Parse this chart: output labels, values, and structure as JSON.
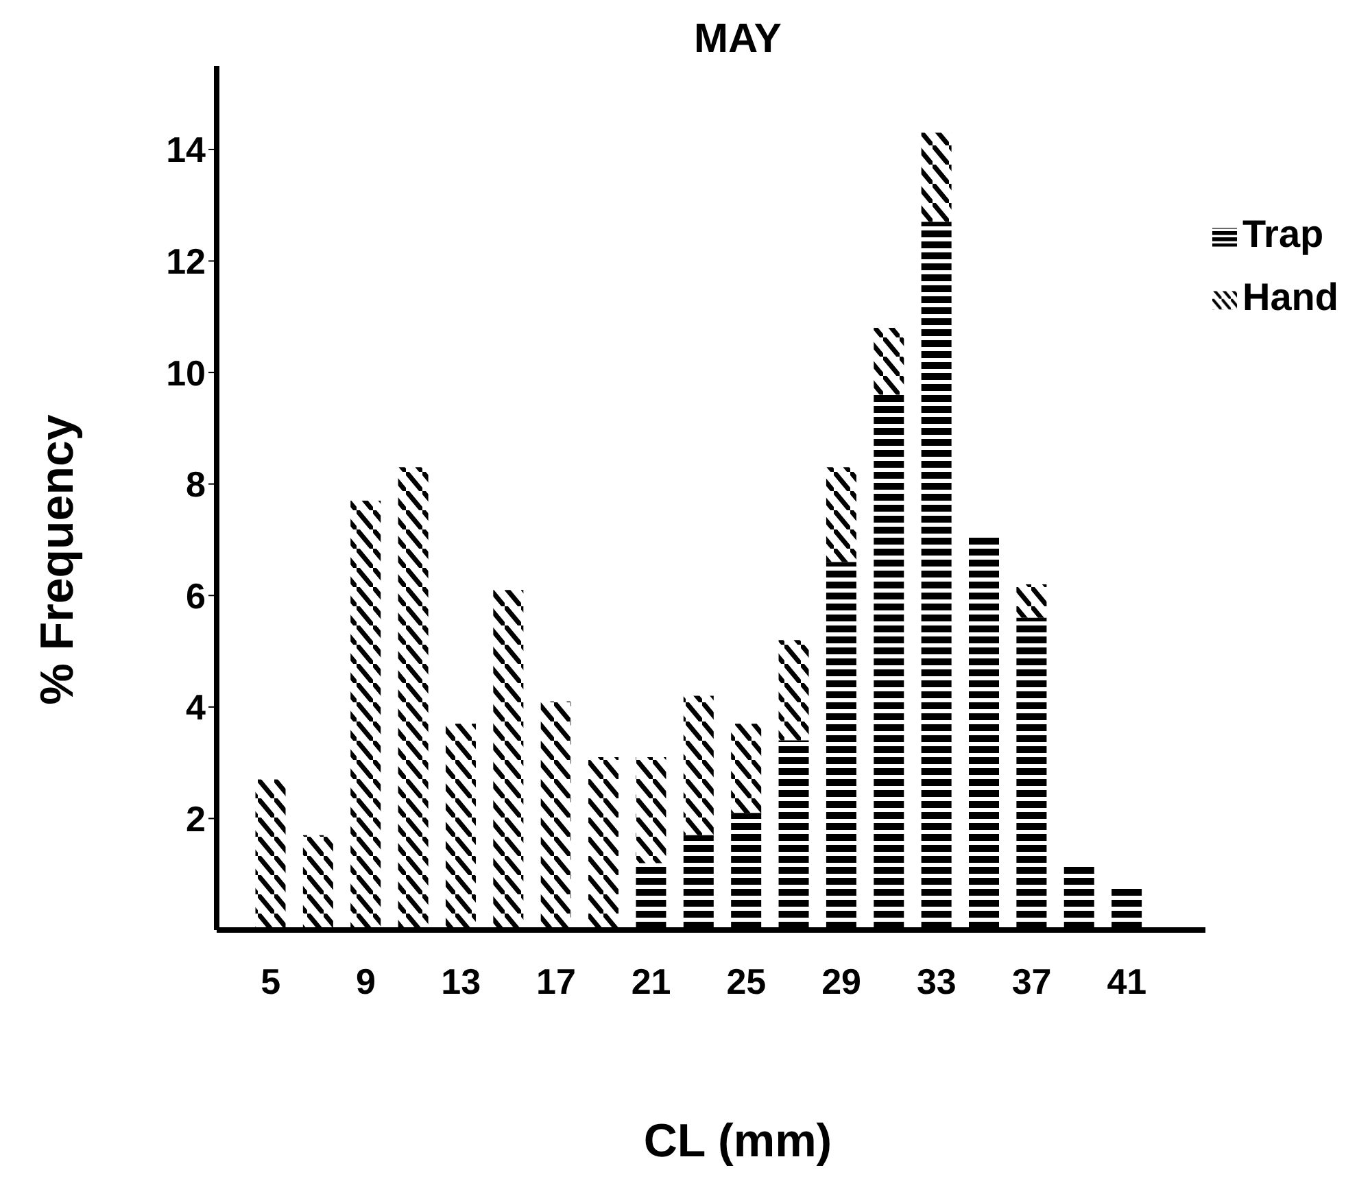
{
  "chart_data": {
    "type": "bar",
    "title": "MAY",
    "xlabel": "CL (mm)",
    "ylabel": "% Frequency",
    "stacked": true,
    "categories": [
      "5",
      null,
      "9",
      null,
      "13",
      null,
      "17",
      null,
      "21",
      null,
      "25",
      null,
      "29",
      null,
      "33",
      null,
      "37",
      null,
      "41"
    ],
    "series": [
      {
        "name": "Trap",
        "color": "#000000",
        "values": [
          null,
          null,
          null,
          null,
          null,
          null,
          null,
          null,
          1.2,
          1.7,
          2.1,
          3.4,
          6.6,
          9.6,
          12.7,
          7.1,
          5.6,
          1.2,
          0.8
        ]
      },
      {
        "name": "Hand",
        "color": "#000000",
        "values": [
          2.7,
          1.7,
          7.7,
          8.3,
          3.7,
          6.1,
          4.1,
          3.1,
          1.9,
          2.5,
          1.6,
          1.8,
          1.7,
          1.2,
          1.6,
          null,
          0.6,
          null,
          null
        ]
      }
    ],
    "ylim": [
      0,
      15.5
    ],
    "yticks": [
      2,
      4,
      6,
      8,
      10,
      12,
      14
    ],
    "legend": "top right"
  }
}
